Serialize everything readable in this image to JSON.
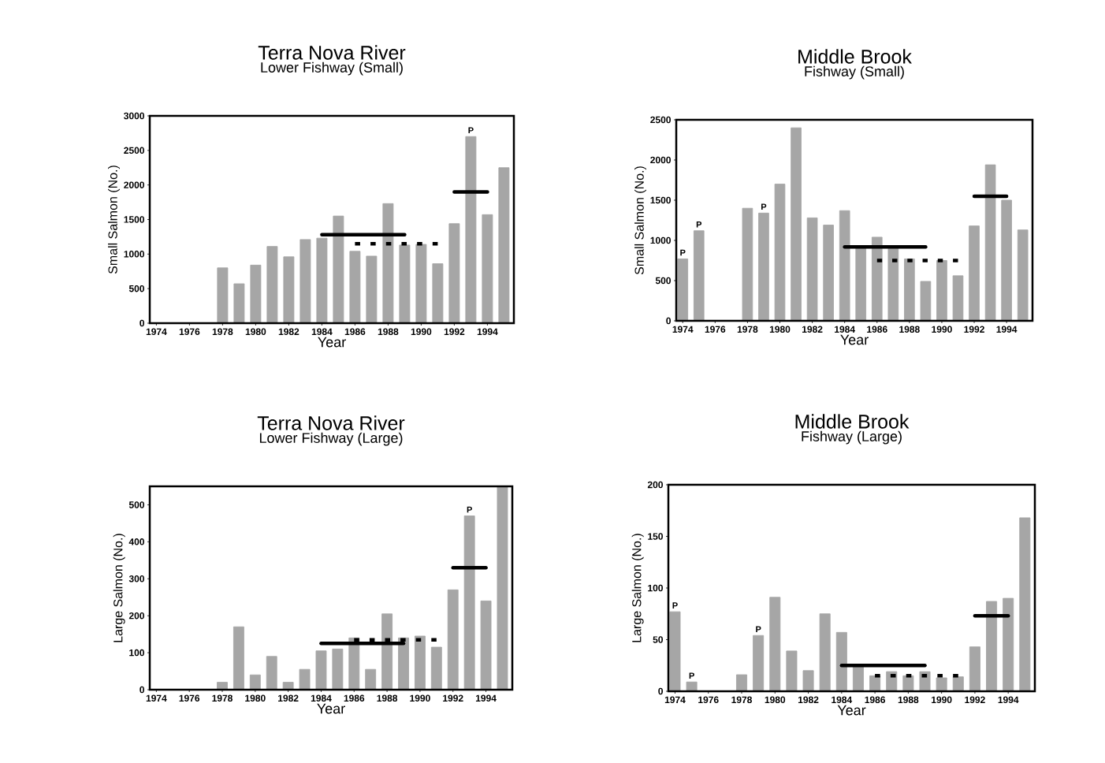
{
  "chart_data": [
    {
      "type": "bar",
      "title": "Terra Nova River",
      "subtitle": "Lower Fishway (Small)",
      "xlabel": "Year",
      "ylabel": "Small Salmon (No.)",
      "x": [
        1974,
        1975,
        1976,
        1977,
        1978,
        1979,
        1980,
        1981,
        1982,
        1983,
        1984,
        1985,
        1986,
        1987,
        1988,
        1989,
        1990,
        1991,
        1992,
        1993,
        1994,
        1995
      ],
      "xlim": [
        1973.6,
        1995.6
      ],
      "xticks": [
        1974,
        1976,
        1978,
        1980,
        1982,
        1984,
        1986,
        1988,
        1990,
        1992,
        1994
      ],
      "ylim": [
        0,
        3000
      ],
      "yticks": [
        0,
        500,
        1000,
        1500,
        2000,
        2500,
        3000
      ],
      "series": [
        {
          "color": "#a6a6a6",
          "values": [
            0,
            0,
            0,
            0,
            800,
            570,
            840,
            1110,
            960,
            1210,
            1230,
            1550,
            1040,
            970,
            1730,
            1130,
            1140,
            860,
            1440,
            2700,
            1570,
            2250
          ]
        },
        {
          "type": "line",
          "color": "#000000",
          "line_style": "solid",
          "x": [
            1984,
            1989
          ],
          "values": [
            1280,
            1280
          ]
        },
        {
          "type": "line",
          "color": "#000000",
          "line_style": "dotted",
          "x": [
            1986,
            1991
          ],
          "values": [
            1150,
            1150
          ]
        },
        {
          "type": "line",
          "color": "#000000",
          "line_style": "solid",
          "x": [
            1992,
            1994
          ],
          "values": [
            1900,
            1900
          ]
        }
      ],
      "annotations": [
        {
          "text": "P",
          "x": 1993,
          "y": 2700
        }
      ]
    },
    {
      "type": "bar",
      "title": "Middle Brook",
      "subtitle": "Fishway (Small)",
      "xlabel": "Year",
      "ylabel": "Small Salmon (No.)",
      "x": [
        1974,
        1975,
        1976,
        1977,
        1978,
        1979,
        1980,
        1981,
        1982,
        1983,
        1984,
        1985,
        1986,
        1987,
        1988,
        1989,
        1990,
        1991,
        1992,
        1993,
        1994,
        1995
      ],
      "xlim": [
        1973.6,
        1995.6
      ],
      "xticks": [
        1974,
        1976,
        1978,
        1980,
        1982,
        1984,
        1986,
        1988,
        1990,
        1992,
        1994
      ],
      "ylim": [
        0,
        2500
      ],
      "yticks": [
        0,
        500,
        1000,
        1500,
        2000,
        2500
      ],
      "series": [
        {
          "color": "#a6a6a6",
          "values": [
            770,
            1120,
            0,
            0,
            1400,
            1340,
            1700,
            2400,
            1280,
            1190,
            1370,
            910,
            1040,
            900,
            770,
            490,
            750,
            560,
            1180,
            1940,
            1500,
            1130
          ]
        },
        {
          "type": "line",
          "color": "#000000",
          "line_style": "solid",
          "x": [
            1984,
            1989
          ],
          "values": [
            920,
            920
          ]
        },
        {
          "type": "line",
          "color": "#000000",
          "line_style": "dotted",
          "x": [
            1986,
            1991
          ],
          "values": [
            750,
            750
          ]
        },
        {
          "type": "line",
          "color": "#000000",
          "line_style": "solid",
          "x": [
            1992,
            1994
          ],
          "values": [
            1550,
            1550
          ]
        }
      ],
      "annotations": [
        {
          "text": "P",
          "x": 1974,
          "y": 770
        },
        {
          "text": "P",
          "x": 1975,
          "y": 1120
        },
        {
          "text": "P",
          "x": 1979,
          "y": 1340
        }
      ]
    },
    {
      "type": "bar",
      "title": "Terra Nova River",
      "subtitle": "Lower Fishway (Large)",
      "xlabel": "Year",
      "ylabel": "Large Salmon (No.)",
      "x": [
        1974,
        1975,
        1976,
        1977,
        1978,
        1979,
        1980,
        1981,
        1982,
        1983,
        1984,
        1985,
        1986,
        1987,
        1988,
        1989,
        1990,
        1991,
        1992,
        1993,
        1994,
        1995
      ],
      "xlim": [
        1973.6,
        1995.6
      ],
      "xticks": [
        1974,
        1976,
        1978,
        1980,
        1982,
        1984,
        1986,
        1988,
        1990,
        1992,
        1994
      ],
      "ylim": [
        0,
        550
      ],
      "yticks": [
        0,
        100,
        200,
        300,
        400,
        500
      ],
      "series": [
        {
          "color": "#a6a6a6",
          "values": [
            0,
            0,
            0,
            0,
            20,
            170,
            40,
            90,
            20,
            55,
            105,
            110,
            140,
            55,
            205,
            140,
            145,
            115,
            270,
            470,
            240,
            550
          ]
        },
        {
          "type": "line",
          "color": "#000000",
          "line_style": "solid",
          "x": [
            1984,
            1989
          ],
          "values": [
            125,
            125
          ]
        },
        {
          "type": "line",
          "color": "#000000",
          "line_style": "dotted",
          "x": [
            1986,
            1991
          ],
          "values": [
            135,
            135
          ]
        },
        {
          "type": "line",
          "color": "#000000",
          "line_style": "solid",
          "x": [
            1992,
            1994
          ],
          "values": [
            330,
            330
          ]
        }
      ],
      "annotations": [
        {
          "text": "P",
          "x": 1993,
          "y": 470
        }
      ]
    },
    {
      "type": "bar",
      "title": "Middle Brook",
      "subtitle": "Fishway (Large)",
      "xlabel": "Year",
      "ylabel": "Large Salmon (No.)",
      "x": [
        1974,
        1975,
        1976,
        1977,
        1978,
        1979,
        1980,
        1981,
        1982,
        1983,
        1984,
        1985,
        1986,
        1987,
        1988,
        1989,
        1990,
        1991,
        1992,
        1993,
        1994,
        1995
      ],
      "xlim": [
        1973.6,
        1995.6
      ],
      "xticks": [
        1974,
        1976,
        1978,
        1980,
        1982,
        1984,
        1986,
        1988,
        1990,
        1992,
        1994
      ],
      "ylim": [
        0,
        200
      ],
      "yticks": [
        0,
        50,
        100,
        150,
        200
      ],
      "series": [
        {
          "color": "#a6a6a6",
          "values": [
            77,
            9,
            0,
            0,
            16,
            54,
            91,
            39,
            20,
            75,
            57,
            25,
            15,
            19,
            15,
            19,
            13,
            14,
            43,
            87,
            90,
            168
          ]
        },
        {
          "type": "line",
          "color": "#000000",
          "line_style": "solid",
          "x": [
            1984,
            1989
          ],
          "values": [
            25,
            25
          ]
        },
        {
          "type": "line",
          "color": "#000000",
          "line_style": "dotted",
          "x": [
            1986,
            1991
          ],
          "values": [
            15,
            15
          ]
        },
        {
          "type": "line",
          "color": "#000000",
          "line_style": "solid",
          "x": [
            1992,
            1994
          ],
          "values": [
            73,
            73
          ]
        }
      ],
      "annotations": [
        {
          "text": "P",
          "x": 1974,
          "y": 77
        },
        {
          "text": "P",
          "x": 1975,
          "y": 9
        },
        {
          "text": "P",
          "x": 1979,
          "y": 54
        }
      ]
    }
  ]
}
